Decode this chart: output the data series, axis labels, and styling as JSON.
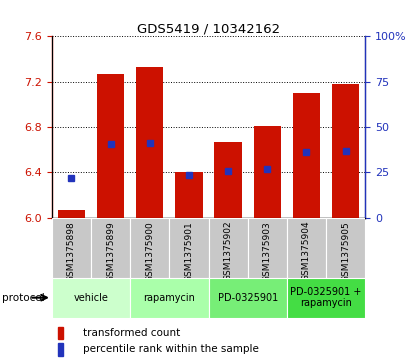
{
  "title": "GDS5419 / 10342162",
  "samples": [
    "GSM1375898",
    "GSM1375899",
    "GSM1375900",
    "GSM1375901",
    "GSM1375902",
    "GSM1375903",
    "GSM1375904",
    "GSM1375905"
  ],
  "bar_heights": [
    6.07,
    7.27,
    7.33,
    6.4,
    6.67,
    6.81,
    7.1,
    7.18
  ],
  "blue_marker_y": [
    6.35,
    6.65,
    6.66,
    6.38,
    6.41,
    6.43,
    6.58,
    6.59
  ],
  "protocols": [
    {
      "label": "vehicle",
      "start": 0,
      "end": 2,
      "color": "#ccffcc"
    },
    {
      "label": "rapamycin",
      "start": 2,
      "end": 4,
      "color": "#aaffaa"
    },
    {
      "label": "PD-0325901",
      "start": 4,
      "end": 6,
      "color": "#77ee77"
    },
    {
      "label": "PD-0325901 +\nrapamycin",
      "start": 6,
      "end": 8,
      "color": "#44dd44"
    }
  ],
  "ylim_left": [
    6.0,
    7.6
  ],
  "yticks_left": [
    6.0,
    6.4,
    6.8,
    7.2,
    7.6
  ],
  "ylim_right": [
    0,
    100
  ],
  "yticks_right": [
    0,
    25,
    50,
    75,
    100
  ],
  "bar_color": "#cc1100",
  "blue_color": "#2233bb",
  "bar_width": 0.7,
  "bg_label_row": "#c8c8c8",
  "legend_items": [
    "transformed count",
    "percentile rank within the sample"
  ]
}
